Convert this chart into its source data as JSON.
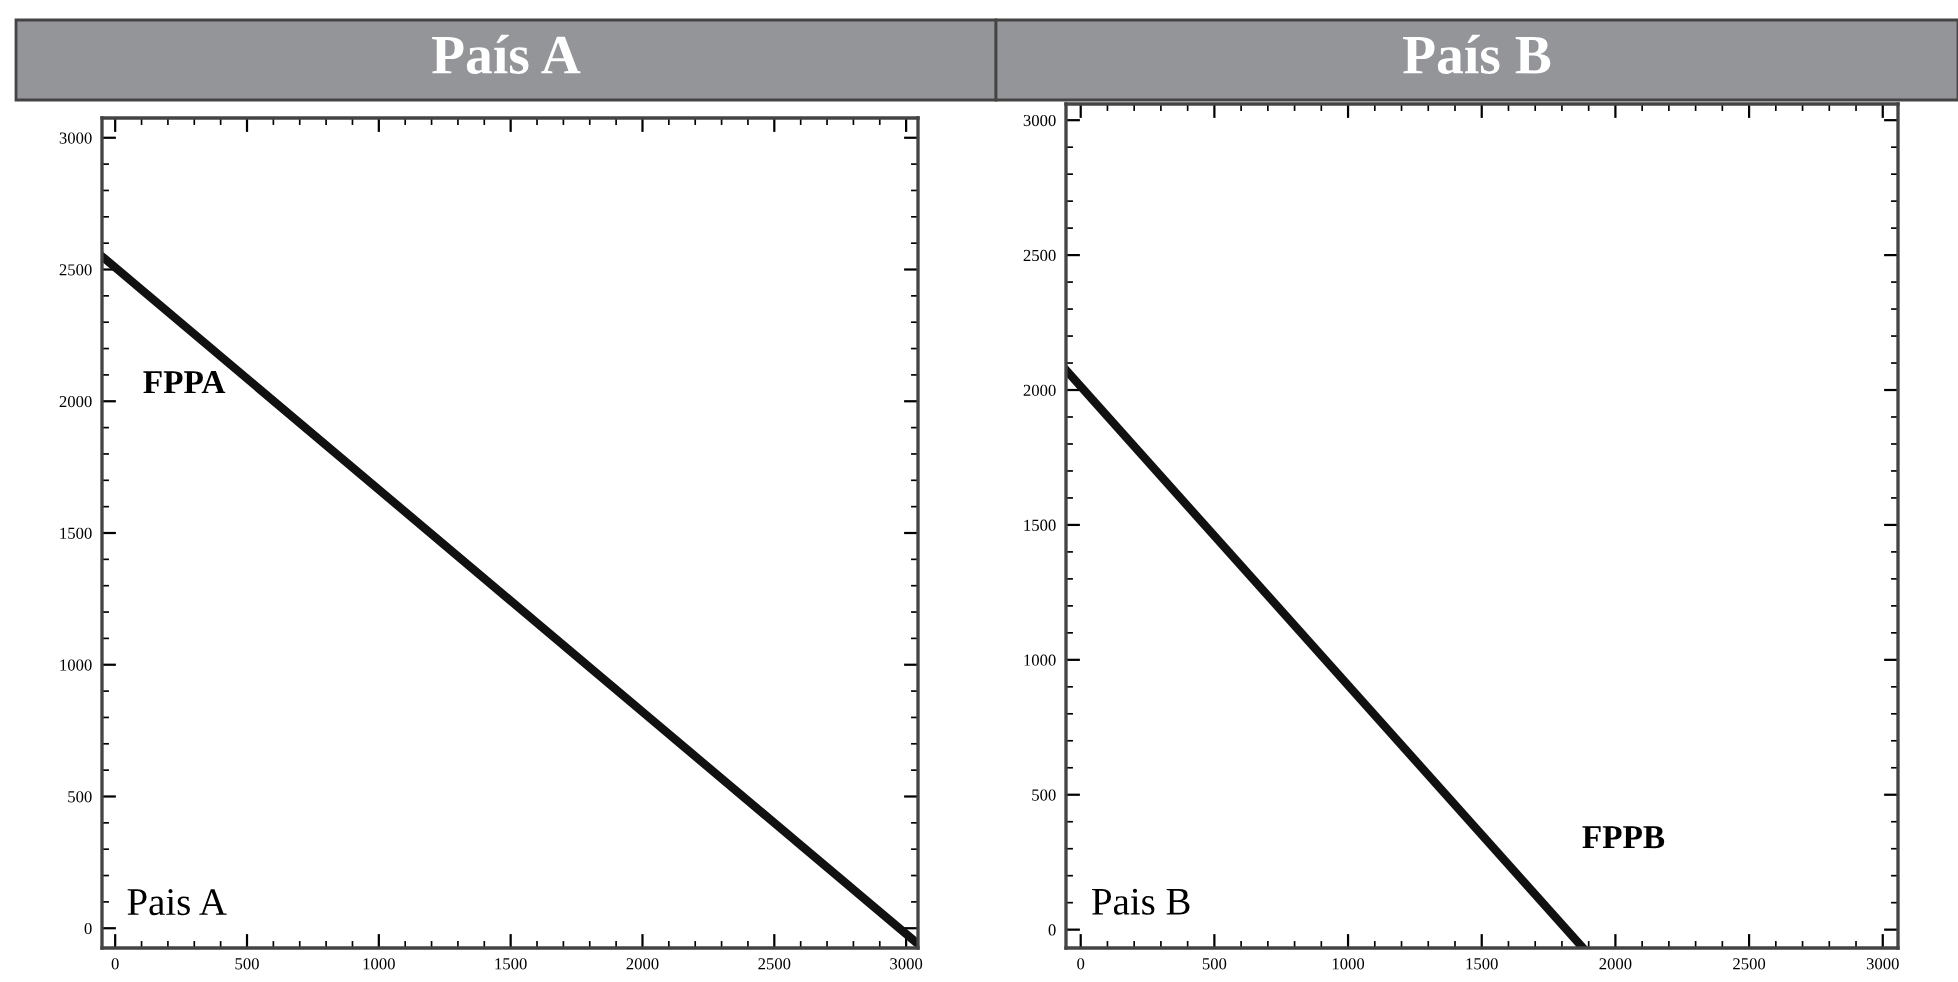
{
  "chart_data": [
    {
      "type": "line",
      "title": "País A",
      "x": [
        -50,
        3045
      ],
      "series": [
        {
          "color": "#111111",
          "values": [
            2550,
            -60
          ]
        }
      ],
      "xlim": [
        -50,
        3045
      ],
      "ylim": [
        -75,
        3075
      ],
      "xticks": [
        0,
        500,
        1000,
        1500,
        2000,
        2500,
        3000
      ],
      "yticks": [
        0,
        500,
        1000,
        1500,
        2000,
        2500,
        3000
      ],
      "grid": false,
      "legend": false,
      "marker": "none",
      "line_style": "solid",
      "annotations": [
        "FPPA",
        "Pais A"
      ]
    },
    {
      "type": "line",
      "title": "País B",
      "x": [
        -55,
        1879
      ],
      "series": [
        {
          "color": "#111111",
          "values": [
            2074,
            -68
          ]
        }
      ],
      "xlim": [
        -55,
        3057
      ],
      "ylim": [
        -68,
        3060
      ],
      "xticks": [
        0,
        500,
        1000,
        1500,
        2000,
        2500,
        3000
      ],
      "yticks": [
        0,
        500,
        1000,
        1500,
        2000,
        2500,
        3000
      ],
      "grid": false,
      "legend": false,
      "marker": "none",
      "line_style": "solid",
      "annotations": [
        "FPPB",
        "Pais B"
      ]
    }
  ]
}
